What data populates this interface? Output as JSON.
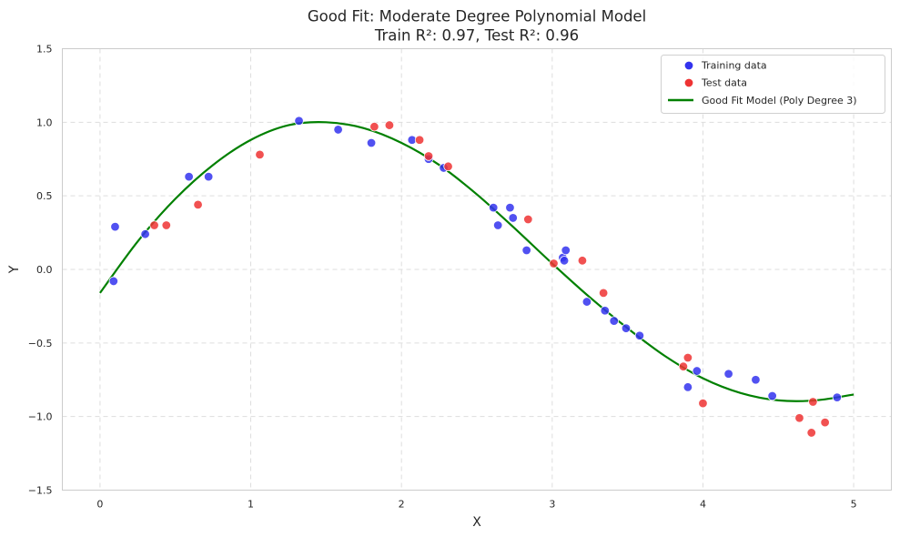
{
  "chart_data": {
    "type": "scatter",
    "title": "Good Fit: Moderate Degree Polynomial Model",
    "subtitle": "Train R²: 0.97, Test R²: 0.96",
    "xlabel": "X",
    "ylabel": "Y",
    "xlim": [
      -0.25,
      5.25
    ],
    "ylim": [
      -1.5,
      1.5
    ],
    "xticks": [
      0,
      1,
      2,
      3,
      4,
      5
    ],
    "xtick_labels": [
      "0",
      "1",
      "2",
      "3",
      "4",
      "5"
    ],
    "yticks": [
      -1.5,
      -1.0,
      -0.5,
      0.0,
      0.5,
      1.0,
      1.5
    ],
    "ytick_labels": [
      "−1.5",
      "−1.0",
      "−0.5",
      "0.0",
      "0.5",
      "1.0",
      "1.5"
    ],
    "grid": true,
    "legend_position": "top-right",
    "colors": {
      "training": "#3333ee",
      "test": "#ee3333",
      "model": "#008000",
      "grid": "#dddddd",
      "frame": "#cccccc"
    },
    "series": [
      {
        "name": "Training data",
        "kind": "scatter",
        "x": [
          0.09,
          0.1,
          0.3,
          0.59,
          0.72,
          1.32,
          1.58,
          1.8,
          2.07,
          2.18,
          2.28,
          2.61,
          2.64,
          2.72,
          2.74,
          2.83,
          3.07,
          3.08,
          3.09,
          3.23,
          3.35,
          3.41,
          3.49,
          3.58,
          3.9,
          3.96,
          4.17,
          4.35,
          4.46,
          4.89
        ],
        "y": [
          -0.08,
          0.29,
          0.24,
          0.63,
          0.63,
          1.01,
          0.95,
          0.86,
          0.88,
          0.75,
          0.69,
          0.42,
          0.3,
          0.42,
          0.35,
          0.13,
          0.08,
          0.06,
          0.13,
          -0.22,
          -0.28,
          -0.35,
          -0.4,
          -0.45,
          -0.8,
          -0.69,
          -0.71,
          -0.75,
          -0.86,
          -0.87
        ]
      },
      {
        "name": "Test data",
        "kind": "scatter",
        "x": [
          0.36,
          0.44,
          0.65,
          1.06,
          1.82,
          1.92,
          2.12,
          2.18,
          2.31,
          2.84,
          3.01,
          3.2,
          3.34,
          3.87,
          3.9,
          4.0,
          4.64,
          4.72,
          4.73,
          4.81
        ],
        "y": [
          0.3,
          0.3,
          0.44,
          0.78,
          0.97,
          0.98,
          0.88,
          0.77,
          0.7,
          0.34,
          0.04,
          0.06,
          -0.16,
          -0.66,
          -0.6,
          -0.91,
          -1.01,
          -1.11,
          -0.9,
          -1.04
        ]
      },
      {
        "name": "Good Fit Model (Poly Degree 3)",
        "kind": "line",
        "x": [
          0.0,
          0.25,
          0.5,
          0.75,
          1.0,
          1.25,
          1.5,
          1.75,
          2.0,
          2.25,
          2.5,
          2.75,
          3.0,
          3.25,
          3.5,
          3.75,
          4.0,
          4.25,
          4.5,
          4.75,
          5.0
        ],
        "y": [
          -0.16,
          0.19,
          0.48,
          0.71,
          0.88,
          0.98,
          1.0,
          0.96,
          0.86,
          0.71,
          0.51,
          0.28,
          0.04,
          -0.19,
          -0.4,
          -0.59,
          -0.74,
          -0.84,
          -0.89,
          -0.89,
          -0.85
        ]
      }
    ]
  }
}
